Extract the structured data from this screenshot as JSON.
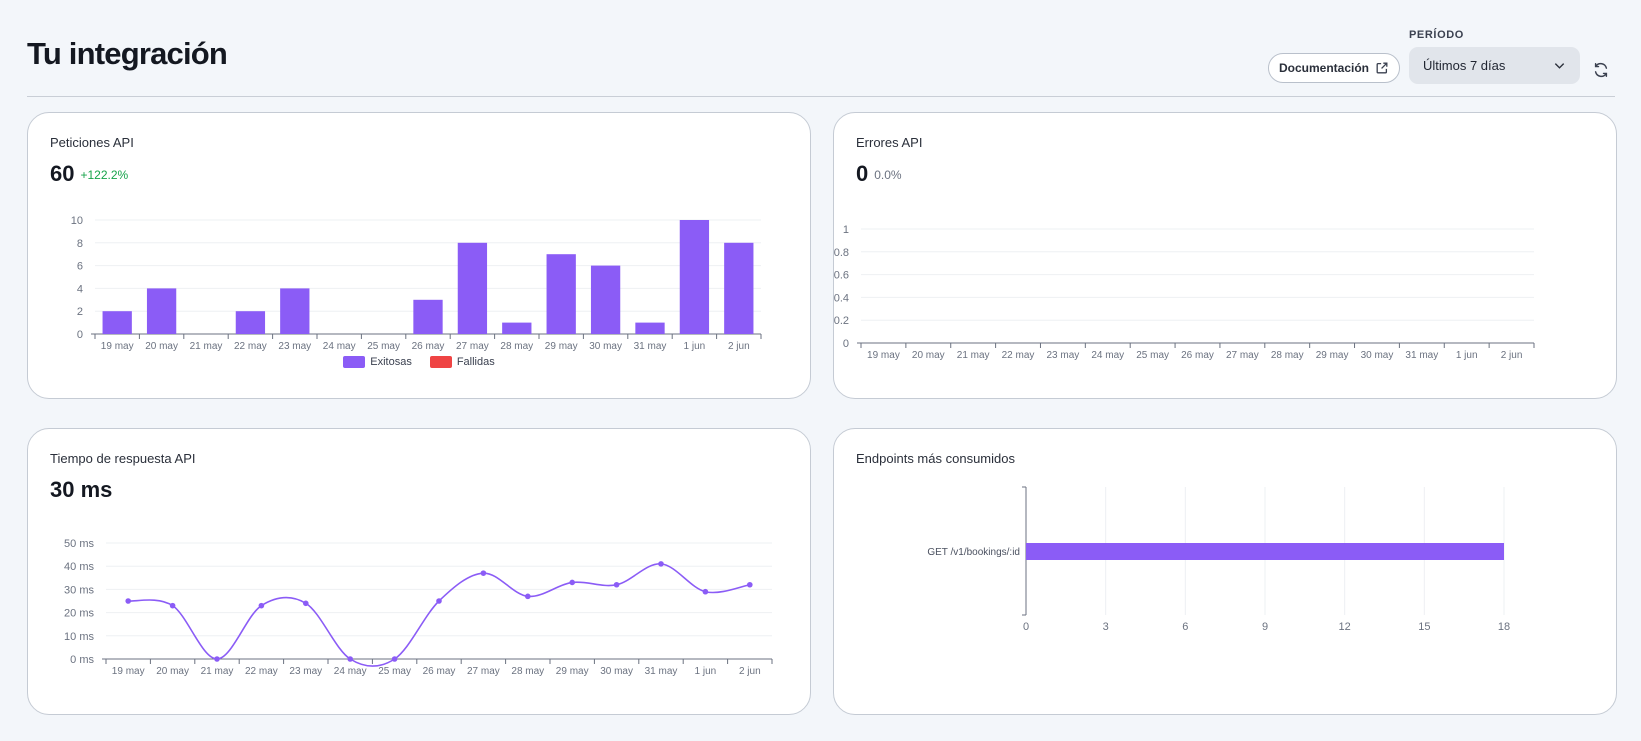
{
  "header": {
    "title": "Tu integración",
    "doc_button": "Documentación",
    "period_label": "PERÍODO",
    "period_value": "Últimos 7 días"
  },
  "colors": {
    "accent": "#8b5cf6",
    "failed": "#ef4444",
    "positive": "#16a34a",
    "neutral": "#6b7280"
  },
  "cards": {
    "requests": {
      "title": "Peticiones API",
      "value": "60",
      "delta": "+122.2%"
    },
    "errors": {
      "title": "Errores API",
      "value": "0",
      "delta": "0.0%"
    },
    "latency": {
      "title": "Tiempo de respuesta API",
      "value": "30 ms"
    },
    "endpoints": {
      "title": "Endpoints más consumidos"
    }
  },
  "chart_data": [
    {
      "type": "bar",
      "categories": [
        "19 may",
        "20 may",
        "21 may",
        "22 may",
        "23 may",
        "24 may",
        "25 may",
        "26 may",
        "27 may",
        "28 may",
        "29 may",
        "30 may",
        "31 may",
        "1 jun",
        "2 jun"
      ],
      "series": [
        {
          "name": "Exitosas",
          "values": [
            2,
            4,
            0,
            2,
            4,
            0,
            0,
            3,
            8,
            1,
            7,
            6,
            1,
            10,
            8
          ]
        },
        {
          "name": "Fallidas",
          "values": [
            0,
            0,
            0,
            0,
            0,
            0,
            0,
            0,
            0,
            0,
            0,
            0,
            0,
            0,
            0
          ]
        }
      ],
      "yticks": [
        "0",
        "2",
        "4",
        "6",
        "8",
        "10"
      ],
      "ylim": [
        0,
        10
      ],
      "legend": "bottom"
    },
    {
      "type": "line",
      "categories": [
        "19 may",
        "20 may",
        "21 may",
        "22 may",
        "23 may",
        "24 may",
        "25 may",
        "26 may",
        "27 may",
        "28 may",
        "29 may",
        "30 may",
        "31 may",
        "1 jun",
        "2 jun"
      ],
      "values": [
        0,
        0,
        0,
        0,
        0,
        0,
        0,
        0,
        0,
        0,
        0,
        0,
        0,
        0,
        0
      ],
      "yticks": [
        "0",
        "0.2",
        "0.4",
        "0.6",
        "0.8",
        "1"
      ],
      "ylim": [
        0,
        1
      ]
    },
    {
      "type": "line",
      "categories": [
        "19 may",
        "20 may",
        "21 may",
        "22 may",
        "23 may",
        "24 may",
        "25 may",
        "26 may",
        "27 may",
        "28 may",
        "29 may",
        "30 may",
        "31 may",
        "1 jun",
        "2 jun"
      ],
      "values": [
        25,
        23,
        0,
        23,
        24,
        0,
        0,
        25,
        37,
        27,
        33,
        32,
        41,
        29,
        32
      ],
      "yticks": [
        "0 ms",
        "10 ms",
        "20 ms",
        "30 ms",
        "40 ms",
        "50 ms"
      ],
      "ylim": [
        0,
        50
      ]
    },
    {
      "type": "bar",
      "orientation": "horizontal",
      "categories": [
        "GET /v1/bookings/:id"
      ],
      "values": [
        18
      ],
      "xticks": [
        "0",
        "3",
        "6",
        "9",
        "12",
        "15",
        "18"
      ],
      "xlim": [
        0,
        18
      ]
    }
  ]
}
